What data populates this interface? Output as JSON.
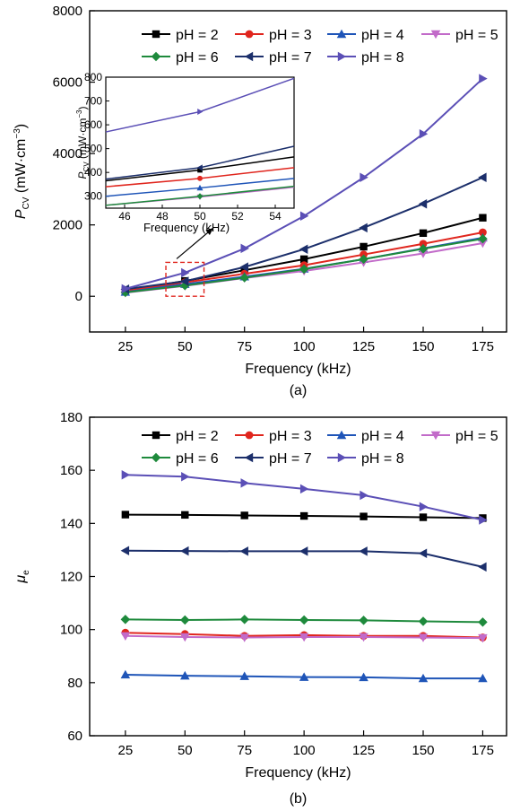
{
  "chart_data": [
    {
      "type": "line",
      "panel_label": "(a)",
      "title": "",
      "xlabel": "Frequency (kHz)",
      "ylabel_main": "P",
      "ylabel_sub": "CV",
      "ylabel_unit": "(mW·cm",
      "ylabel_unit_sup": "−3",
      "ylabel_unit_end": ")",
      "xlim": [
        10,
        185
      ],
      "ylim": [
        -1000,
        8000
      ],
      "xticks": [
        25,
        50,
        75,
        100,
        125,
        150,
        175
      ],
      "yticks": [
        0,
        2000,
        4000,
        6000,
        8000
      ],
      "grid": false,
      "legend_position": "top-right",
      "x": [
        25,
        50,
        75,
        100,
        125,
        150,
        175
      ],
      "series": [
        {
          "name": "pH = 2",
          "color": "#000000",
          "marker": "square",
          "values": [
            170,
            430,
            730,
            1040,
            1390,
            1770,
            2200
          ]
        },
        {
          "name": "pH = 3",
          "color": "#e0261e",
          "marker": "circle",
          "values": [
            150,
            390,
            630,
            870,
            1170,
            1470,
            1790
          ]
        },
        {
          "name": "pH = 4",
          "color": "#1f55b8",
          "marker": "triangle-up",
          "values": [
            120,
            340,
            550,
            770,
            1040,
            1340,
            1640
          ]
        },
        {
          "name": "pH = 5",
          "color": "#c26bc9",
          "marker": "triangle-down",
          "values": [
            100,
            290,
            510,
            710,
            950,
            1200,
            1490
          ]
        },
        {
          "name": "pH = 6",
          "color": "#1e8a3c",
          "marker": "diamond",
          "values": [
            110,
            300,
            520,
            760,
            1040,
            1330,
            1610
          ]
        },
        {
          "name": "pH = 7",
          "color": "#1c2f6b",
          "marker": "triangle-left",
          "values": [
            200,
            420,
            820,
            1320,
            1920,
            2590,
            3330
          ]
        },
        {
          "name": "pH = 8",
          "color": "#5b4fb6",
          "marker": "triangle-right",
          "values": [
            210,
            660,
            1340,
            2250,
            3330,
            4550,
            6100
          ]
        }
      ],
      "inset": {
        "xlabel": "Frequency (kHz)",
        "ylabel_main": "P",
        "ylabel_sub": "CV",
        "ylabel_unit": "(mW·cm",
        "ylabel_unit_sup": "−3",
        "ylabel_unit_end": ")",
        "xlim": [
          45,
          55
        ],
        "ylim": [
          250,
          800
        ],
        "xticks": [
          46,
          48,
          50,
          52,
          54
        ],
        "yticks": [
          300,
          400,
          500,
          600,
          700,
          800
        ],
        "x": [
          45,
          50,
          55
        ],
        "series": [
          {
            "name": "pH = 2",
            "values": [
              365,
              410,
              465
            ]
          },
          {
            "name": "pH = 3",
            "values": [
              340,
              375,
              420
            ]
          },
          {
            "name": "pH = 4",
            "values": [
              300,
              335,
              375
            ]
          },
          {
            "name": "pH = 5",
            "values": [
              262,
              297,
              338
            ]
          },
          {
            "name": "pH = 6",
            "values": [
              262,
              300,
              342
            ]
          },
          {
            "name": "pH = 7",
            "values": [
              372,
              420,
              510
            ]
          },
          {
            "name": "pH = 8",
            "values": [
              570,
              655,
              795
            ]
          }
        ]
      }
    },
    {
      "type": "line",
      "panel_label": "(b)",
      "title": "",
      "xlabel": "Frequency (kHz)",
      "ylabel_main": "μ",
      "ylabel_sub": "e",
      "xlim": [
        10,
        185
      ],
      "ylim": [
        60,
        180
      ],
      "xticks": [
        25,
        50,
        75,
        100,
        125,
        150,
        175
      ],
      "yticks": [
        60,
        80,
        100,
        120,
        140,
        160,
        180
      ],
      "grid": false,
      "legend_position": "top-right",
      "x": [
        25,
        50,
        75,
        100,
        125,
        150,
        175
      ],
      "series": [
        {
          "name": "pH = 2",
          "color": "#000000",
          "marker": "square",
          "values": [
            143.3,
            143.2,
            143.0,
            142.8,
            142.6,
            142.3,
            142.0
          ]
        },
        {
          "name": "pH = 3",
          "color": "#e0261e",
          "marker": "circle",
          "values": [
            98.8,
            98.3,
            97.6,
            97.9,
            97.6,
            97.6,
            97.0
          ]
        },
        {
          "name": "pH = 4",
          "color": "#1f55b8",
          "marker": "triangle-up",
          "values": [
            83.0,
            82.6,
            82.4,
            82.1,
            82.0,
            81.6,
            81.6
          ]
        },
        {
          "name": "pH = 5",
          "color": "#c26bc9",
          "marker": "triangle-down",
          "values": [
            97.6,
            97.2,
            97.0,
            97.2,
            97.2,
            97.0,
            96.8
          ]
        },
        {
          "name": "pH = 6",
          "color": "#1e8a3c",
          "marker": "diamond",
          "values": [
            103.8,
            103.6,
            103.8,
            103.6,
            103.5,
            103.1,
            102.8
          ]
        },
        {
          "name": "pH = 7",
          "color": "#1c2f6b",
          "marker": "triangle-left",
          "values": [
            129.7,
            129.6,
            129.5,
            129.5,
            129.5,
            128.7,
            123.6
          ]
        },
        {
          "name": "pH = 8",
          "color": "#5b4fb6",
          "marker": "triangle-right",
          "values": [
            158.3,
            157.6,
            155.2,
            153.0,
            150.6,
            146.3,
            141.3
          ]
        }
      ]
    }
  ]
}
